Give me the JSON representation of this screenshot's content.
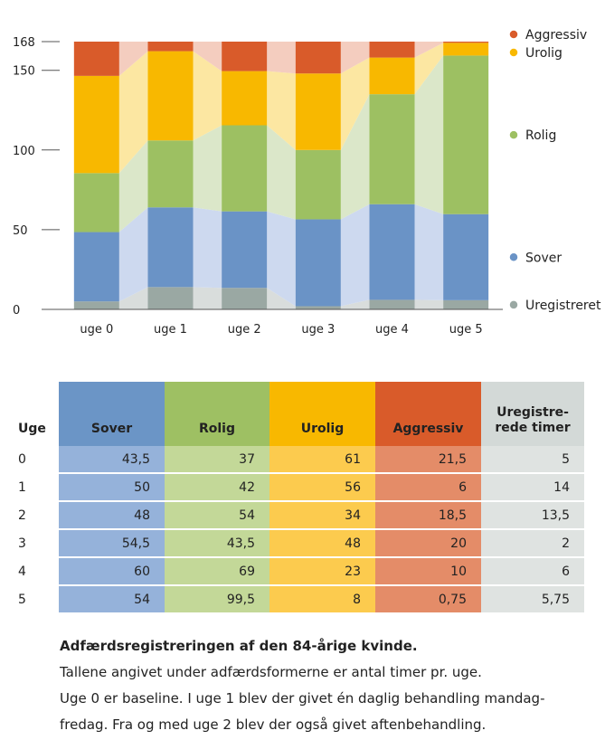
{
  "chart_data": {
    "type": "stacked-bar",
    "categories": [
      "uge 0",
      "uge 1",
      "uge 2",
      "uge 3",
      "uge 4",
      "uge 5"
    ],
    "series": [
      {
        "name": "Uregistreret",
        "color": "#9aa8a3",
        "band_color": "#d9dddc",
        "values": [
          5,
          14,
          13.5,
          2,
          6,
          5.75
        ]
      },
      {
        "name": "Sover",
        "color": "#6a93c6",
        "band_color": "#cdd9ef",
        "values": [
          43.5,
          50,
          48,
          54.5,
          60,
          54
        ]
      },
      {
        "name": "Rolig",
        "color": "#9dc062",
        "band_color": "#dbe7c9",
        "values": [
          37,
          42,
          54,
          43.5,
          69,
          99.5
        ]
      },
      {
        "name": "Urolig",
        "color": "#f8b800",
        "band_color": "#fce7a2",
        "values": [
          61,
          56,
          34,
          48,
          23,
          8
        ]
      },
      {
        "name": "Aggressiv",
        "color": "#d95b2a",
        "band_color": "#f4cdbf",
        "values": [
          21.5,
          6,
          18.5,
          20,
          10,
          0.75
        ]
      }
    ],
    "legend_order": [
      "Aggressiv",
      "Urolig",
      "Rolig",
      "Sover",
      "Uregistreret"
    ],
    "yticks": [
      "0",
      "50",
      "100",
      "150",
      "168"
    ],
    "ylim": [
      0,
      168
    ],
    "legend_position": "right"
  },
  "table": {
    "header_uge": "Uge",
    "header_sover": "Sover",
    "header_rolig": "Rolig",
    "header_urolig": "Urolig",
    "header_aggressiv": "Aggressiv",
    "header_uregistrerede_line1": "Uregistre-",
    "header_uregistrerede_line2": "rede timer",
    "rows": [
      {
        "uge": "0",
        "sover": "43,5",
        "rolig": "37",
        "urolig": "61",
        "aggressiv": "21,5",
        "ureg": "5"
      },
      {
        "uge": "1",
        "sover": "50",
        "rolig": "42",
        "urolig": "56",
        "aggressiv": "6",
        "ureg": "14"
      },
      {
        "uge": "2",
        "sover": "48",
        "rolig": "54",
        "urolig": "34",
        "aggressiv": "18,5",
        "ureg": "13,5"
      },
      {
        "uge": "3",
        "sover": "54,5",
        "rolig": "43,5",
        "urolig": "48",
        "aggressiv": "20",
        "ureg": "2"
      },
      {
        "uge": "4",
        "sover": "60",
        "rolig": "69",
        "urolig": "23",
        "aggressiv": "10",
        "ureg": "6"
      },
      {
        "uge": "5",
        "sover": "54",
        "rolig": "99,5",
        "urolig": "8",
        "aggressiv": "0,75",
        "ureg": "5,75"
      }
    ]
  },
  "caption": {
    "title": "Adfærdsregistreringen af den 84-årige kvinde.",
    "line1": "Tallene angivet under adfærdsformerne er antal timer pr. uge.",
    "line2": "Uge 0 er baseline. I uge 1 blev der givet én daglig behandling mandag-",
    "line3": "fredag. Fra og med uge 2 blev der også givet aftenbehandling."
  }
}
